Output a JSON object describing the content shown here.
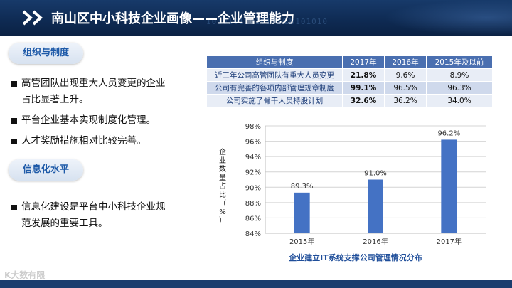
{
  "header": {
    "title": "南山区中小科技企业画像——企业管理能力",
    "binary_text_1": "1010101101010101",
    "binary_text_2": "10101010"
  },
  "section1": {
    "label": "组织与制度",
    "bullets": [
      "高管团队出现重大人员变更的企业占比显著上升。",
      "平台企业基本实现制度化管理。",
      "人才奖励措施相对比较完善。"
    ]
  },
  "section2": {
    "label": "信息化水平",
    "bullets": [
      "信息化建设是平台中小科技企业规范发展的重要工具。"
    ]
  },
  "table": {
    "headers": [
      "组织与制度",
      "2017年",
      "2016年",
      "2015年及以前"
    ],
    "rows": [
      [
        "近三年公司高管团队有重大人员变更",
        "21.8%",
        "9.6%",
        "8.9%"
      ],
      [
        "公司有完善的各项内部管理规章制度",
        "99.1%",
        "96.5%",
        "96.3%"
      ],
      [
        "公司实施了骨干人员持股计划",
        "32.6%",
        "36.2%",
        "34.0%"
      ]
    ]
  },
  "chart_data": {
    "type": "bar",
    "categories": [
      "2015年",
      "2016年",
      "2017年"
    ],
    "values": [
      89.3,
      91.0,
      96.2
    ],
    "value_labels": [
      "89.3%",
      "91.0%",
      "96.2%"
    ],
    "ylim": [
      84,
      98
    ],
    "yticks": [
      "84%",
      "86%",
      "88%",
      "90%",
      "92%",
      "94%",
      "96%",
      "98%"
    ],
    "ylabel": "企业数量占比（%）",
    "xlabel": "企业建立IT系统支撑公司管理情况分布",
    "bar_color": "#4472c4",
    "grid": true
  },
  "watermark": "K大数有限"
}
